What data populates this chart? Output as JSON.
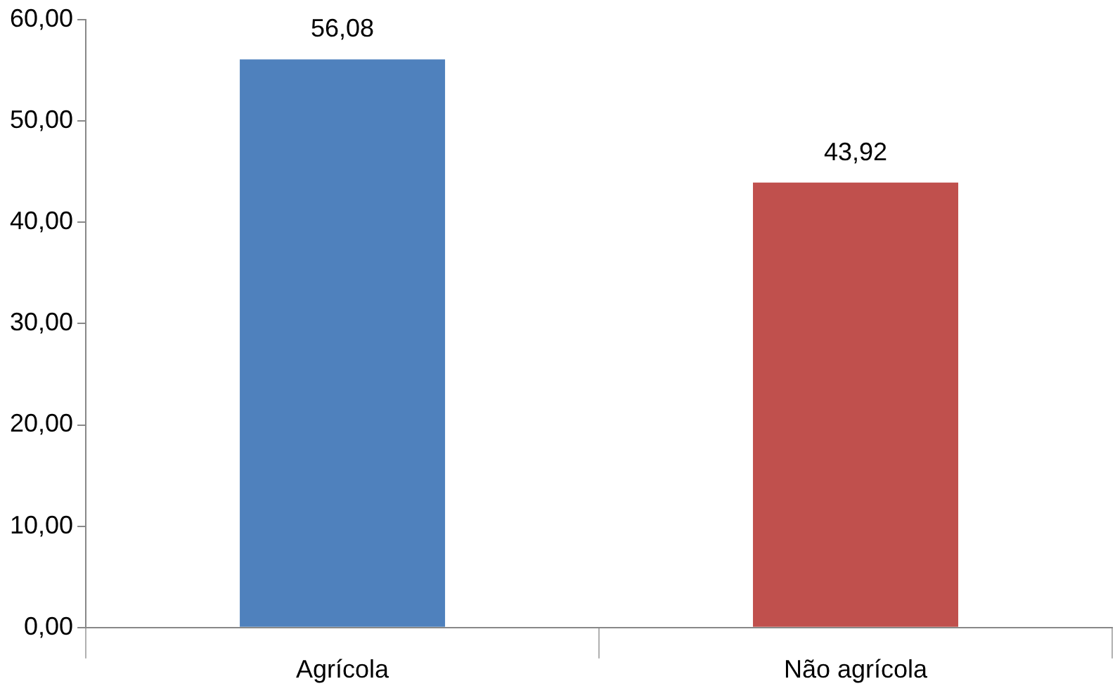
{
  "chart_data": {
    "type": "bar",
    "categories": [
      "Agrícola",
      "Não agrícola"
    ],
    "values": [
      56.08,
      43.92
    ],
    "colors": [
      "#4f81bd",
      "#c0504d"
    ],
    "value_labels": [
      "56,08",
      "43,92"
    ],
    "ylim": [
      0,
      60
    ],
    "yticks": [
      {
        "value": 0,
        "label": "0,00"
      },
      {
        "value": 10,
        "label": "10,00"
      },
      {
        "value": 20,
        "label": "20,00"
      },
      {
        "value": 30,
        "label": "30,00"
      },
      {
        "value": 40,
        "label": "40,00"
      },
      {
        "value": 50,
        "label": "50,00"
      },
      {
        "value": 60,
        "label": "60,00"
      }
    ],
    "grid": false,
    "legend": false
  }
}
